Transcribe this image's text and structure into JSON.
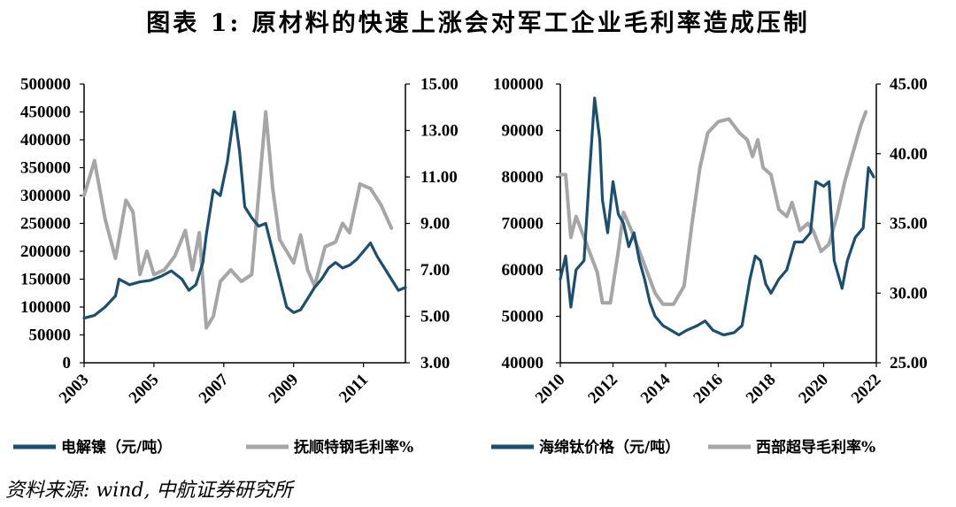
{
  "title": "图表 1: 原材料的快速上涨会对军工企业毛利率造成压制",
  "source": "资料来源: wind, 中航证券研究所",
  "colors": {
    "dark_series": "#1b4f72",
    "light_series": "#a6a6a6"
  },
  "chart_data": [
    {
      "type": "line",
      "x_axis": {
        "type": "date",
        "range": [
          2003.0,
          2012.2
        ],
        "tick_labels": [
          "2003",
          "2005",
          "2007",
          "2009",
          "2011"
        ]
      },
      "y_left": {
        "range": [
          0,
          500000
        ],
        "tick_labels": [
          "500000",
          "450000",
          "400000",
          "350000",
          "300000",
          "250000",
          "200000",
          "150000",
          "100000",
          "50000",
          "0"
        ]
      },
      "y_right": {
        "range": [
          3,
          15
        ],
        "tick_labels": [
          "15.00",
          "13.00",
          "11.00",
          "9.00",
          "7.00",
          "5.00",
          "3.00"
        ]
      },
      "series": [
        {
          "name": "电解镍（元/吨）",
          "axis": "left",
          "color": "#1b4f72",
          "points": [
            [
              2003.0,
              80000
            ],
            [
              2003.3,
              85000
            ],
            [
              2003.6,
              100000
            ],
            [
              2003.9,
              120000
            ],
            [
              2004.0,
              150000
            ],
            [
              2004.3,
              140000
            ],
            [
              2004.6,
              145000
            ],
            [
              2004.9,
              148000
            ],
            [
              2005.2,
              155000
            ],
            [
              2005.5,
              165000
            ],
            [
              2005.8,
              150000
            ],
            [
              2006.0,
              130000
            ],
            [
              2006.2,
              140000
            ],
            [
              2006.4,
              180000
            ],
            [
              2006.5,
              230000
            ],
            [
              2006.7,
              310000
            ],
            [
              2006.9,
              300000
            ],
            [
              2007.1,
              360000
            ],
            [
              2007.3,
              450000
            ],
            [
              2007.45,
              380000
            ],
            [
              2007.6,
              280000
            ],
            [
              2007.8,
              260000
            ],
            [
              2008.0,
              245000
            ],
            [
              2008.2,
              250000
            ],
            [
              2008.4,
              200000
            ],
            [
              2008.6,
              150000
            ],
            [
              2008.8,
              100000
            ],
            [
              2009.0,
              90000
            ],
            [
              2009.2,
              95000
            ],
            [
              2009.4,
              115000
            ],
            [
              2009.6,
              135000
            ],
            [
              2009.8,
              150000
            ],
            [
              2010.0,
              170000
            ],
            [
              2010.2,
              180000
            ],
            [
              2010.4,
              170000
            ],
            [
              2010.6,
              175000
            ],
            [
              2010.8,
              185000
            ],
            [
              2011.0,
              200000
            ],
            [
              2011.2,
              215000
            ],
            [
              2011.4,
              190000
            ],
            [
              2011.6,
              170000
            ],
            [
              2011.8,
              150000
            ],
            [
              2012.0,
              130000
            ],
            [
              2012.2,
              135000
            ]
          ]
        },
        {
          "name": "抚顺特钢毛利率%",
          "axis": "right",
          "color": "#a6a6a6",
          "points": [
            [
              2003.0,
              10.2
            ],
            [
              2003.3,
              11.7
            ],
            [
              2003.6,
              9.2
            ],
            [
              2003.9,
              7.5
            ],
            [
              2004.2,
              10.0
            ],
            [
              2004.4,
              9.5
            ],
            [
              2004.6,
              6.8
            ],
            [
              2004.8,
              7.8
            ],
            [
              2005.0,
              6.8
            ],
            [
              2005.3,
              7.0
            ],
            [
              2005.6,
              7.6
            ],
            [
              2005.9,
              8.7
            ],
            [
              2006.1,
              7.0
            ],
            [
              2006.3,
              8.6
            ],
            [
              2006.5,
              4.5
            ],
            [
              2006.7,
              5.0
            ],
            [
              2006.9,
              6.5
            ],
            [
              2007.2,
              7.0
            ],
            [
              2007.5,
              6.5
            ],
            [
              2007.8,
              6.8
            ],
            [
              2008.2,
              13.8
            ],
            [
              2008.4,
              10.5
            ],
            [
              2008.6,
              8.3
            ],
            [
              2008.8,
              7.8
            ],
            [
              2009.0,
              7.3
            ],
            [
              2009.2,
              8.5
            ],
            [
              2009.4,
              7.0
            ],
            [
              2009.6,
              6.3
            ],
            [
              2009.9,
              8.0
            ],
            [
              2010.2,
              8.2
            ],
            [
              2010.4,
              9.0
            ],
            [
              2010.6,
              8.6
            ],
            [
              2010.9,
              10.7
            ],
            [
              2011.2,
              10.5
            ],
            [
              2011.5,
              9.8
            ],
            [
              2011.8,
              8.8
            ]
          ]
        }
      ]
    },
    {
      "type": "line",
      "x_axis": {
        "type": "date",
        "range": [
          2010.0,
          2022.0
        ],
        "tick_labels": [
          "2010",
          "2012",
          "2014",
          "2016",
          "2018",
          "2020",
          "2022"
        ]
      },
      "y_left": {
        "range": [
          40000,
          100000
        ],
        "tick_labels": [
          "100000",
          "90000",
          "80000",
          "70000",
          "60000",
          "50000",
          "40000"
        ]
      },
      "y_right": {
        "range": [
          25,
          45
        ],
        "tick_labels": [
          "45.00",
          "40.00",
          "35.00",
          "30.00",
          "25.00"
        ]
      },
      "series": [
        {
          "name": "海绵钛价格（元/吨）",
          "axis": "left",
          "color": "#1b4f72",
          "points": [
            [
              2010.0,
              58000
            ],
            [
              2010.2,
              63000
            ],
            [
              2010.4,
              52000
            ],
            [
              2010.6,
              60000
            ],
            [
              2010.9,
              62000
            ],
            [
              2011.1,
              80000
            ],
            [
              2011.3,
              97000
            ],
            [
              2011.5,
              88000
            ],
            [
              2011.6,
              75000
            ],
            [
              2011.8,
              68000
            ],
            [
              2012.0,
              79000
            ],
            [
              2012.2,
              72000
            ],
            [
              2012.4,
              70000
            ],
            [
              2012.6,
              65000
            ],
            [
              2012.8,
              68000
            ],
            [
              2013.0,
              62000
            ],
            [
              2013.2,
              58000
            ],
            [
              2013.4,
              53000
            ],
            [
              2013.6,
              50000
            ],
            [
              2013.9,
              48000
            ],
            [
              2014.2,
              47000
            ],
            [
              2014.5,
              46000
            ],
            [
              2014.8,
              47000
            ],
            [
              2015.2,
              48000
            ],
            [
              2015.5,
              49000
            ],
            [
              2015.8,
              47000
            ],
            [
              2016.2,
              46000
            ],
            [
              2016.6,
              46500
            ],
            [
              2016.9,
              48000
            ],
            [
              2017.2,
              58000
            ],
            [
              2017.4,
              63000
            ],
            [
              2017.6,
              62000
            ],
            [
              2017.8,
              57000
            ],
            [
              2018.0,
              55000
            ],
            [
              2018.3,
              58000
            ],
            [
              2018.6,
              60000
            ],
            [
              2018.9,
              66000
            ],
            [
              2019.2,
              66000
            ],
            [
              2019.5,
              68000
            ],
            [
              2019.7,
              79000
            ],
            [
              2020.0,
              78000
            ],
            [
              2020.2,
              79000
            ],
            [
              2020.4,
              62000
            ],
            [
              2020.7,
              56000
            ],
            [
              2020.9,
              62000
            ],
            [
              2021.2,
              67000
            ],
            [
              2021.5,
              69000
            ],
            [
              2021.7,
              82000
            ],
            [
              2021.9,
              80000
            ]
          ]
        },
        {
          "name": "西部超导毛利率%",
          "axis": "right",
          "color": "#a6a6a6",
          "points": [
            [
              2010.0,
              38.5
            ],
            [
              2010.2,
              38.5
            ],
            [
              2010.4,
              34.0
            ],
            [
              2010.6,
              35.5
            ],
            [
              2010.8,
              34.5
            ],
            [
              2011.1,
              33.0
            ],
            [
              2011.4,
              31.5
            ],
            [
              2011.6,
              29.3
            ],
            [
              2011.9,
              29.3
            ],
            [
              2012.2,
              33.0
            ],
            [
              2012.4,
              35.8
            ],
            [
              2012.7,
              34.5
            ],
            [
              2013.0,
              33.0
            ],
            [
              2013.3,
              31.5
            ],
            [
              2013.6,
              30.0
            ],
            [
              2013.9,
              29.2
            ],
            [
              2014.3,
              29.2
            ],
            [
              2014.7,
              30.5
            ],
            [
              2015.0,
              35.0
            ],
            [
              2015.3,
              39.0
            ],
            [
              2015.6,
              41.5
            ],
            [
              2016.0,
              42.3
            ],
            [
              2016.4,
              42.5
            ],
            [
              2016.8,
              41.5
            ],
            [
              2017.1,
              41.0
            ],
            [
              2017.3,
              39.8
            ],
            [
              2017.5,
              41.0
            ],
            [
              2017.7,
              39.0
            ],
            [
              2018.0,
              38.5
            ],
            [
              2018.3,
              36.0
            ],
            [
              2018.6,
              35.5
            ],
            [
              2018.8,
              36.5
            ],
            [
              2019.1,
              34.5
            ],
            [
              2019.4,
              35.0
            ],
            [
              2019.6,
              34.5
            ],
            [
              2019.9,
              33.0
            ],
            [
              2020.2,
              33.5
            ],
            [
              2020.5,
              35.5
            ],
            [
              2020.8,
              38.0
            ],
            [
              2021.1,
              40.0
            ],
            [
              2021.4,
              42.0
            ],
            [
              2021.6,
              43.0
            ]
          ]
        }
      ]
    }
  ]
}
